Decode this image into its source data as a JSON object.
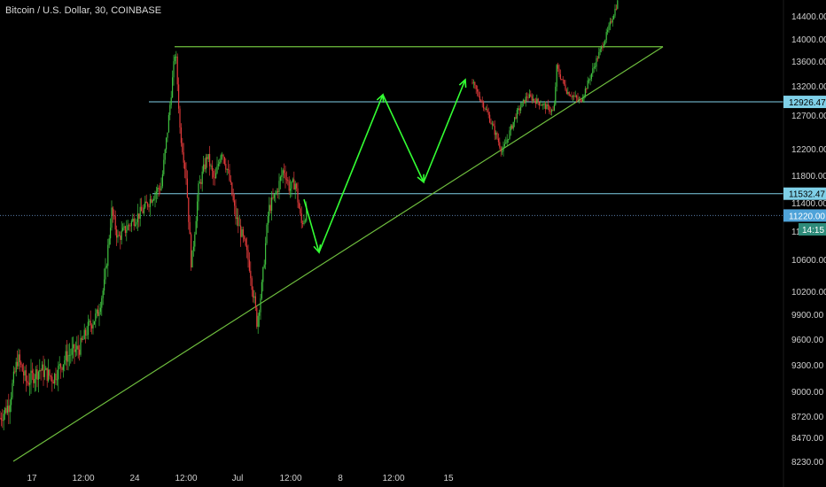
{
  "header": {
    "title": "Bitcoin / U.S. Dollar, 30, COINBASE"
  },
  "chart_data": {
    "type": "candlestick",
    "title": "Bitcoin / U.S. Dollar, 30, COINBASE",
    "y_ticks": [
      8230,
      8470,
      8720,
      9000,
      9300,
      9600,
      9900,
      10200,
      10600,
      11400,
      11800,
      12200,
      12700,
      13200,
      13600,
      14000,
      14400
    ],
    "y_tick_labels": [
      "8230.00",
      "8470.00",
      "8720.00",
      "9000.00",
      "9300.00",
      "9600.00",
      "9900.00",
      "10200.00",
      "10600.00",
      "11400.00",
      "11800.00",
      "12200.00",
      "12700.00",
      "13200.00",
      "13600.00",
      "14000.00",
      "14400.00"
    ],
    "x_tick_labels": [
      "17",
      "12:00",
      "24",
      "12:00",
      "Jul",
      "12:00",
      "8",
      "12:00",
      "15"
    ],
    "ylim": [
      8230,
      14400
    ],
    "price_tags": [
      {
        "label": "12926.47",
        "color": "#7fd0e8"
      },
      {
        "label": "11532.47",
        "color": "#7fd0e8"
      },
      {
        "label": "11220.00",
        "color": "#4fa3d9"
      },
      {
        "label": "14:15",
        "color": "#2e8b7a"
      }
    ],
    "partial_label": "110",
    "price_history": [
      [
        0,
        8700
      ],
      [
        10,
        8850
      ],
      [
        20,
        9380
      ],
      [
        30,
        9100
      ],
      [
        45,
        9250
      ],
      [
        60,
        9150
      ],
      [
        75,
        9400
      ],
      [
        90,
        9500
      ],
      [
        100,
        9750
      ],
      [
        110,
        9900
      ],
      [
        118,
        10300
      ],
      [
        126,
        11280
      ],
      [
        133,
        10900
      ],
      [
        140,
        11000
      ],
      [
        150,
        11150
      ],
      [
        162,
        11300
      ],
      [
        172,
        11500
      ],
      [
        182,
        11650
      ],
      [
        190,
        12600
      ],
      [
        198,
        13820
      ],
      [
        203,
        12500
      ],
      [
        210,
        11800
      ],
      [
        216,
        10500
      ],
      [
        224,
        11600
      ],
      [
        234,
        12100
      ],
      [
        242,
        11700
      ],
      [
        250,
        12200
      ],
      [
        258,
        11800
      ],
      [
        266,
        11200
      ],
      [
        274,
        10900
      ],
      [
        282,
        10500
      ],
      [
        290,
        9800
      ],
      [
        296,
        10300
      ],
      [
        303,
        11300
      ],
      [
        312,
        11550
      ],
      [
        320,
        11900
      ],
      [
        327,
        11600
      ],
      [
        333,
        11700
      ],
      [
        340,
        11100
      ],
      [
        346,
        11280
      ]
    ],
    "forecast_path": [
      [
        343,
        11450
      ],
      [
        360,
        10700
      ],
      [
        432,
        13050
      ],
      [
        478,
        11700
      ],
      [
        525,
        13300
      ]
    ],
    "projected_price": [
      [
        533,
        13250
      ],
      [
        548,
        12800
      ],
      [
        567,
        12150
      ],
      [
        582,
        12700
      ],
      [
        595,
        13030
      ],
      [
        610,
        12900
      ],
      [
        625,
        12750
      ],
      [
        628,
        13500
      ],
      [
        640,
        13100
      ],
      [
        655,
        12930
      ],
      [
        670,
        13500
      ],
      [
        685,
        14100
      ],
      [
        697,
        14650
      ]
    ],
    "levels": [
      {
        "name": "top",
        "value": 13860,
        "color": "#6fbf3e"
      },
      {
        "name": "upper",
        "value": 12926.47,
        "color": "#7fd0e8"
      },
      {
        "name": "lower",
        "value": 11532.47,
        "color": "#7fd0e8"
      },
      {
        "name": "current",
        "value": 11220,
        "color": "#5a7ca8"
      }
    ],
    "trendline": [
      [
        15,
        8230
      ],
      [
        748,
        13860
      ]
    ],
    "colors": {
      "background": "#000000",
      "up": "#3fbf3f",
      "down": "#e03a3a",
      "forecast": "#33ff33",
      "trend": "#6fbf3e",
      "text": "#cfcfcf"
    }
  }
}
